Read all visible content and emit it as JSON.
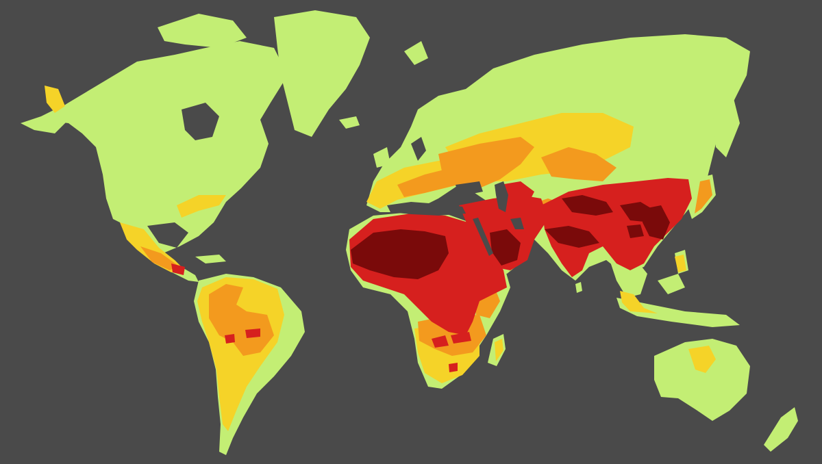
{
  "map": {
    "background_color": "#4a4a4a",
    "land_color": "#c3ee74",
    "levels": [
      {
        "name": "level-1",
        "color": "#c3ee74"
      },
      {
        "name": "level-2",
        "color": "#f5d328"
      },
      {
        "name": "level-3",
        "color": "#f39a1e"
      },
      {
        "name": "level-4",
        "color": "#d6201e"
      },
      {
        "name": "level-5",
        "color": "#7a0a0a"
      }
    ]
  }
}
